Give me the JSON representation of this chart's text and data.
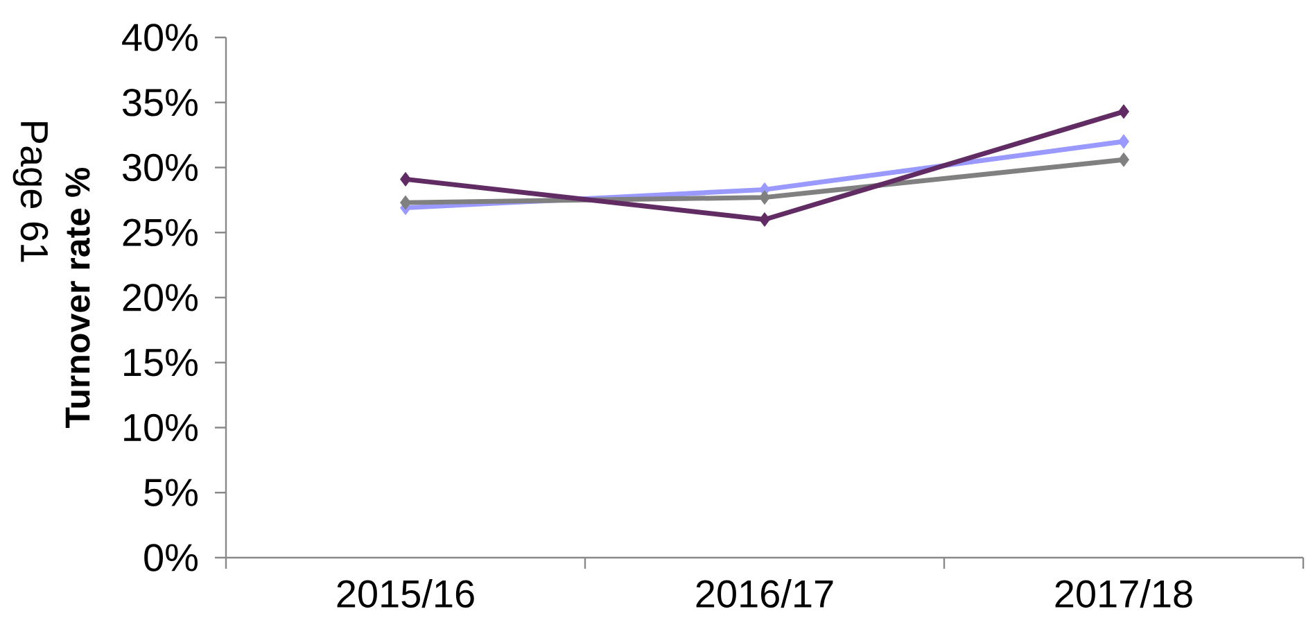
{
  "chart_data": {
    "type": "line",
    "ylabel": "Turnover rate %",
    "annotations": [
      "Page 61"
    ],
    "categories": [
      "2015/16",
      "2016/17",
      "2017/18"
    ],
    "series": [
      {
        "color": "#9999ff",
        "values": [
          26.9,
          28.3,
          32.0
        ]
      },
      {
        "color": "#808080",
        "values": [
          27.3,
          27.7,
          30.6
        ]
      },
      {
        "color": "#612c63",
        "values": [
          29.1,
          26.0,
          34.3
        ]
      }
    ],
    "ylim": [
      0,
      40
    ],
    "yticks": [
      {
        "value": 0,
        "label": "0%"
      },
      {
        "value": 5,
        "label": "5%"
      },
      {
        "value": 10,
        "label": "10%"
      },
      {
        "value": 15,
        "label": "15%"
      },
      {
        "value": 20,
        "label": "20%"
      },
      {
        "value": 25,
        "label": "25%"
      },
      {
        "value": 30,
        "label": "30%"
      },
      {
        "value": 35,
        "label": "35%"
      },
      {
        "value": 40,
        "label": "40%"
      }
    ],
    "marker": "diamond",
    "line_style": "solid"
  }
}
